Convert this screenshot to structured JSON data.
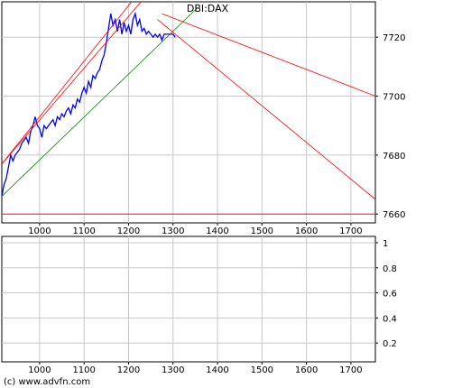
{
  "chart_data": [
    {
      "type": "line",
      "title": "DBI:DAX",
      "xlim": [
        915,
        1755
      ],
      "ylim": [
        7657,
        7732
      ],
      "x_ticks": [
        1000,
        1100,
        1200,
        1300,
        1400,
        1500,
        1600,
        1700
      ],
      "y_ticks": [
        7660,
        7680,
        7700,
        7720
      ],
      "grid": true,
      "series": [
        {
          "color": "#0000ff",
          "x": [
            915,
            920,
            925,
            930,
            935,
            940,
            945,
            950,
            955,
            960,
            965,
            970,
            975,
            980,
            985,
            990,
            995,
            1000,
            1005,
            1010,
            1015,
            1020,
            1025,
            1030,
            1035,
            1040,
            1045,
            1050,
            1055,
            1060,
            1065,
            1070,
            1075,
            1080,
            1085,
            1090,
            1095,
            1100,
            1105,
            1110,
            1115,
            1120,
            1125,
            1130,
            1135,
            1140,
            1145,
            1150,
            1155,
            1160,
            1165,
            1170,
            1175,
            1180,
            1185,
            1190,
            1195,
            1200,
            1205,
            1210,
            1215,
            1220,
            1225,
            1230,
            1235,
            1240,
            1245,
            1250,
            1255,
            1260,
            1265,
            1270,
            1275,
            1280,
            1285,
            1290,
            1295,
            1300,
            1305
          ],
          "values": [
            7666,
            7670,
            7672,
            7676,
            7680,
            7678,
            7680,
            7681,
            7682,
            7684,
            7685,
            7686,
            7684,
            7688,
            7690,
            7693,
            7690,
            7689,
            7686,
            7690,
            7689,
            7690,
            7691,
            7692,
            7690,
            7693,
            7692,
            7694,
            7693,
            7695,
            7696,
            7694,
            7697,
            7696,
            7699,
            7698,
            7701,
            7703,
            7701,
            7705,
            7703,
            7707,
            7706,
            7708,
            7709,
            7712,
            7714,
            7718,
            7723,
            7728,
            7724,
            7726,
            7722,
            7726,
            7721,
            7725,
            7722,
            7724,
            7721,
            7726,
            7728,
            7724,
            7726,
            7722,
            7723,
            7721,
            7722,
            7721,
            7720,
            7721,
            7720,
            7721,
            7719,
            7721,
            7721,
            7721,
            7721,
            7721,
            7720
          ]
        },
        {
          "color": "#008800",
          "x": [
            915,
            1355
          ],
          "values": [
            7666,
            7730
          ]
        },
        {
          "color": "#ff0000",
          "x": [
            915,
            1260
          ],
          "values": [
            7677,
            7742
          ]
        },
        {
          "color": "#ff0000",
          "x": [
            915,
            1285
          ],
          "values": [
            7677,
            7742
          ]
        },
        {
          "color": "#ff0000",
          "x": [
            1275,
            1755
          ],
          "values": [
            7728,
            7700
          ]
        },
        {
          "color": "#ff0000",
          "x": [
            1265,
            1755
          ],
          "values": [
            7726,
            7665
          ]
        },
        {
          "color": "#ff0000",
          "x": [
            915,
            1755
          ],
          "values": [
            7660,
            7660
          ]
        }
      ]
    },
    {
      "type": "line",
      "xlim": [
        915,
        1755
      ],
      "ylim": [
        0.05,
        1.05
      ],
      "x_ticks": [
        1000,
        1100,
        1200,
        1300,
        1400,
        1500,
        1600,
        1700
      ],
      "y_ticks": [
        0.2,
        0.4,
        0.6,
        0.8,
        1
      ],
      "grid": true,
      "series": []
    }
  ],
  "footer": {
    "copyright": "(c) www.advfn.com"
  }
}
